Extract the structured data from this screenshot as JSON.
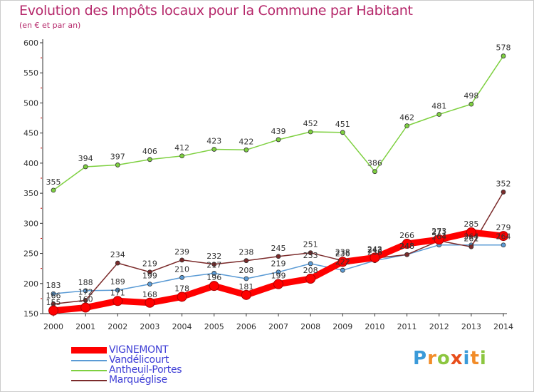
{
  "title": "Evolution des Impôts locaux pour la Commune par Habitant",
  "subtitle": "(en € et par an)",
  "logo_text": "Proxiti",
  "chart_data": {
    "type": "line",
    "title": "Evolution des Impôts locaux pour la Commune par Habitant",
    "subtitle": "(en € et par an)",
    "x": [
      "2000",
      "2001",
      "2002",
      "2003",
      "2004",
      "2005",
      "2006",
      "2007",
      "2008",
      "2009",
      "2010",
      "2011",
      "2012",
      "2013",
      "2014"
    ],
    "ylim": [
      150,
      600
    ],
    "yticks": [
      150,
      200,
      250,
      300,
      350,
      400,
      450,
      500,
      550,
      600
    ],
    "grid": false,
    "legend_position": "bottom-left",
    "series": [
      {
        "name": "VIGNEMONT",
        "color": "#ff0000",
        "values": [
          155,
          160,
          171,
          168,
          178,
          196,
          181,
          199,
          208,
          236,
          243,
          266,
          273,
          285,
          279
        ],
        "labels": [
          "155",
          "160",
          "171",
          "168",
          "178",
          "196",
          "181",
          "199",
          "208",
          "236",
          "243",
          "266",
          "273",
          "285",
          "279"
        ]
      },
      {
        "name": "Vandélicourt",
        "color": "#5b9bd5",
        "values": [
          183,
          188,
          189,
          199,
          210,
          217,
          208,
          219,
          233,
          222,
          238,
          248,
          264,
          264,
          264
        ],
        "labels": [
          "183",
          "188",
          "189",
          "199",
          "210",
          "217",
          "208",
          "219",
          "233",
          "222",
          "238",
          "248",
          "264",
          "264",
          "264"
        ]
      },
      {
        "name": "Antheuil-Portes",
        "color": "#7ed040",
        "values": [
          355,
          394,
          397,
          406,
          412,
          423,
          422,
          439,
          452,
          451,
          386,
          462,
          481,
          498,
          578
        ],
        "labels": [
          "355",
          "394",
          "397",
          "406",
          "412",
          "423",
          "422",
          "439",
          "452",
          "451",
          "386",
          "462",
          "481",
          "498",
          "578"
        ]
      },
      {
        "name": "Marquéglise",
        "color": "#7b2b2b",
        "values": [
          166,
          172,
          234,
          219,
          239,
          232,
          238,
          245,
          251,
          238,
          242,
          248,
          271,
          261,
          352
        ],
        "labels": [
          "166",
          "172",
          "234",
          "219",
          "239",
          "232",
          "238",
          "245",
          "251",
          "238",
          "242",
          "248",
          "271",
          "261",
          "352"
        ]
      }
    ]
  }
}
